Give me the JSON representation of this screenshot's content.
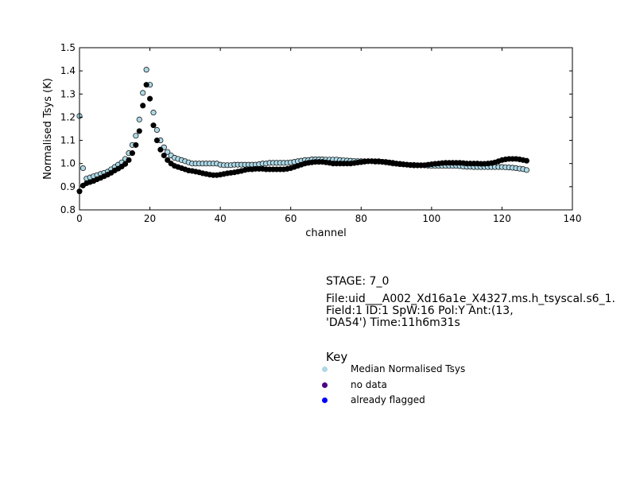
{
  "chart_data": {
    "type": "scatter",
    "xlabel": "channel",
    "ylabel": "Normalised Tsys (K)",
    "xlim": [
      0,
      140
    ],
    "ylim": [
      0.8,
      1.5
    ],
    "xticks": [
      "0",
      "20",
      "40",
      "60",
      "80",
      "100",
      "120",
      "140"
    ],
    "yticks": [
      "0.8",
      "0.9",
      "1.0",
      "1.1",
      "1.2",
      "1.3",
      "1.4",
      "1.5"
    ],
    "grid": false,
    "series": [
      {
        "color": "#add8e6",
        "x": [
          0,
          1,
          2,
          3,
          4,
          5,
          6,
          7,
          8,
          9,
          10,
          11,
          12,
          13,
          14,
          15,
          16,
          17,
          18,
          19,
          20,
          21,
          22,
          23,
          24,
          25,
          26,
          27,
          28,
          29,
          30,
          31,
          32,
          33,
          34,
          35,
          36,
          37,
          38,
          39,
          40,
          41,
          42,
          43,
          44,
          45,
          46,
          47,
          48,
          49,
          50,
          51,
          52,
          53,
          54,
          55,
          56,
          57,
          58,
          59,
          60,
          61,
          62,
          63,
          64,
          65,
          66,
          67,
          68,
          69,
          70,
          71,
          72,
          73,
          74,
          75,
          76,
          77,
          78,
          79,
          80,
          81,
          82,
          83,
          84,
          85,
          86,
          87,
          88,
          89,
          90,
          91,
          92,
          93,
          94,
          95,
          96,
          97,
          98,
          99,
          100,
          101,
          102,
          103,
          104,
          105,
          106,
          107,
          108,
          109,
          110,
          111,
          112,
          113,
          114,
          115,
          116,
          117,
          118,
          119,
          120,
          121,
          122,
          123,
          124,
          125,
          126,
          127
        ],
        "values": [
          1.205,
          0.98,
          0.935,
          0.94,
          0.945,
          0.95,
          0.955,
          0.96,
          0.965,
          0.975,
          0.985,
          0.995,
          1.005,
          1.02,
          1.045,
          1.08,
          1.12,
          1.19,
          1.305,
          1.405,
          1.34,
          1.22,
          1.145,
          1.1,
          1.07,
          1.05,
          1.035,
          1.025,
          1.02,
          1.015,
          1.01,
          1.005,
          1.0,
          1.0,
          1.0,
          1.0,
          1.0,
          1.0,
          1.0,
          1.0,
          0.995,
          0.993,
          0.993,
          0.993,
          0.995,
          0.995,
          0.995,
          0.995,
          0.995,
          0.995,
          0.995,
          0.997,
          1.0,
          1.0,
          1.003,
          1.003,
          1.003,
          1.003,
          1.003,
          1.003,
          1.005,
          1.007,
          1.01,
          1.012,
          1.015,
          1.015,
          1.018,
          1.018,
          1.018,
          1.018,
          1.017,
          1.017,
          1.017,
          1.017,
          1.015,
          1.014,
          1.013,
          1.012,
          1.011,
          1.01,
          1.01,
          1.01,
          1.01,
          1.01,
          1.008,
          1.008,
          1.007,
          1.005,
          1.003,
          1.0,
          0.999,
          0.997,
          0.996,
          0.995,
          0.994,
          0.994,
          0.993,
          0.993,
          0.992,
          0.991,
          0.99,
          0.99,
          0.99,
          0.99,
          0.99,
          0.99,
          0.99,
          0.99,
          0.989,
          0.987,
          0.986,
          0.986,
          0.985,
          0.985,
          0.985,
          0.985,
          0.985,
          0.985,
          0.985,
          0.985,
          0.985,
          0.984,
          0.983,
          0.982,
          0.98,
          0.978,
          0.976,
          0.972
        ]
      },
      {
        "color": "#000000",
        "x": [
          0,
          1,
          2,
          3,
          4,
          5,
          6,
          7,
          8,
          9,
          10,
          11,
          12,
          13,
          14,
          15,
          16,
          17,
          18,
          19,
          20,
          21,
          22,
          23,
          24,
          25,
          26,
          27,
          28,
          29,
          30,
          31,
          32,
          33,
          34,
          35,
          36,
          37,
          38,
          39,
          40,
          41,
          42,
          43,
          44,
          45,
          46,
          47,
          48,
          49,
          50,
          51,
          52,
          53,
          54,
          55,
          56,
          57,
          58,
          59,
          60,
          61,
          62,
          63,
          64,
          65,
          66,
          67,
          68,
          69,
          70,
          71,
          72,
          73,
          74,
          75,
          76,
          77,
          78,
          79,
          80,
          81,
          82,
          83,
          84,
          85,
          86,
          87,
          88,
          89,
          90,
          91,
          92,
          93,
          94,
          95,
          96,
          97,
          98,
          99,
          100,
          101,
          102,
          103,
          104,
          105,
          106,
          107,
          108,
          109,
          110,
          111,
          112,
          113,
          114,
          115,
          116,
          117,
          118,
          119,
          120,
          121,
          122,
          123,
          124,
          125,
          126,
          127
        ],
        "values": [
          0.88,
          0.905,
          0.915,
          0.92,
          0.925,
          0.932,
          0.938,
          0.945,
          0.952,
          0.96,
          0.97,
          0.978,
          0.987,
          0.998,
          1.015,
          1.045,
          1.08,
          1.14,
          1.25,
          1.34,
          1.28,
          1.165,
          1.1,
          1.06,
          1.035,
          1.015,
          1.0,
          0.99,
          0.985,
          0.98,
          0.975,
          0.97,
          0.968,
          0.965,
          0.962,
          0.958,
          0.955,
          0.952,
          0.95,
          0.95,
          0.952,
          0.955,
          0.958,
          0.96,
          0.962,
          0.965,
          0.968,
          0.972,
          0.975,
          0.975,
          0.977,
          0.977,
          0.977,
          0.975,
          0.975,
          0.975,
          0.975,
          0.975,
          0.975,
          0.977,
          0.98,
          0.985,
          0.99,
          0.995,
          1.0,
          1.003,
          1.005,
          1.007,
          1.007,
          1.007,
          1.005,
          1.003,
          1.0,
          1.0,
          1.0,
          1.0,
          1.0,
          1.0,
          1.002,
          1.004,
          1.006,
          1.008,
          1.01,
          1.01,
          1.01,
          1.01,
          1.008,
          1.007,
          1.005,
          1.003,
          1.0,
          0.999,
          0.997,
          0.995,
          0.993,
          0.992,
          0.992,
          0.992,
          0.993,
          0.995,
          0.997,
          0.999,
          1.0,
          1.002,
          1.003,
          1.003,
          1.003,
          1.003,
          1.003,
          1.002,
          1.0,
          1.0,
          1.0,
          1.0,
          0.999,
          0.999,
          1.0,
          1.002,
          1.005,
          1.01,
          1.015,
          1.018,
          1.02,
          1.02,
          1.02,
          1.018,
          1.015,
          1.012
        ]
      }
    ]
  },
  "info": {
    "stage": "STAGE: 7_0",
    "file_line": "File:uid___A002_Xd16a1e_X4327.ms.h_tsyscal.s6_1.",
    "field_line": "Field:1 ID:1 SpW:16 Pol:Y Ant:(13,",
    "ant_line": "'DA54') Time:11h6m31s"
  },
  "key": {
    "title": "Key",
    "items": [
      {
        "label": "Median Normalised Tsys",
        "color": "#add8e6"
      },
      {
        "label": "no data",
        "color": "#4b0082"
      },
      {
        "label": "already flagged",
        "color": "#0000ff"
      }
    ]
  }
}
